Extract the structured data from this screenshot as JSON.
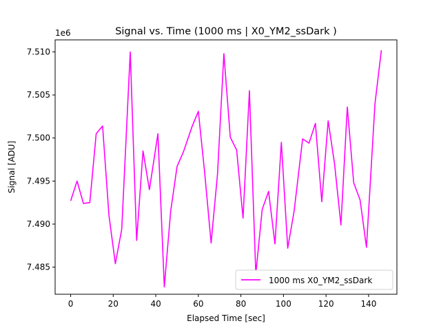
{
  "chart_data": {
    "type": "line",
    "title": "Signal vs. Time (1000 ms | X0_YM2_ssDark )",
    "xlabel": "Elapsed Time [sec]",
    "ylabel": "Signal [ADU]",
    "y_offset_label": "1e6",
    "xlim": [
      -7.3,
      153.3
    ],
    "ylim": [
      7.48185,
      7.5114
    ],
    "x_ticks": [
      0,
      20,
      40,
      60,
      80,
      100,
      120,
      140
    ],
    "x_tick_labels": [
      "0",
      "20",
      "40",
      "60",
      "80",
      "100",
      "120",
      "140"
    ],
    "y_ticks": [
      7.485,
      7.49,
      7.495,
      7.5,
      7.505,
      7.51
    ],
    "y_tick_labels": [
      "7.485",
      "7.490",
      "7.495",
      "7.500",
      "7.505",
      "7.510"
    ],
    "grid": false,
    "legend_position": "lower-right",
    "series": [
      {
        "name": "1000 ms X0_YM2_ssDark",
        "color": "#ff00ff",
        "x": [
          0,
          3,
          6,
          9,
          12,
          15,
          18,
          21,
          24,
          28,
          31,
          34,
          37,
          41,
          44,
          47,
          50,
          53,
          57,
          60,
          63,
          66,
          69,
          72,
          75,
          78,
          81,
          84,
          87,
          90,
          93,
          96,
          99,
          102,
          105,
          109,
          112,
          115,
          118,
          121,
          124,
          127,
          130,
          133,
          136,
          139,
          143,
          146
        ],
        "y": [
          7.4927,
          7.495,
          7.4924,
          7.4925,
          7.5005,
          7.5014,
          7.491,
          7.4854,
          7.4894,
          7.51,
          7.4881,
          7.4985,
          7.494,
          7.5005,
          7.4827,
          7.4915,
          7.4967,
          7.4984,
          7.5013,
          7.5031,
          7.4959,
          7.4878,
          7.4958,
          7.5098,
          7.5001,
          7.4986,
          7.4907,
          7.5055,
          7.4842,
          7.4917,
          7.4938,
          7.4877,
          7.4995,
          7.4872,
          7.4915,
          7.4999,
          7.4994,
          7.5017,
          7.4926,
          7.502,
          7.497,
          7.4899,
          7.5036,
          7.4948,
          7.4928,
          7.4873,
          7.504,
          7.5102
        ]
      }
    ]
  }
}
